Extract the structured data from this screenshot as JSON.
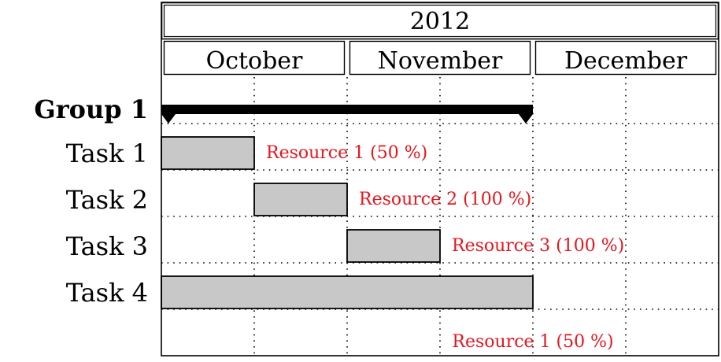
{
  "chart_data": {
    "type": "gantt",
    "title": "2012",
    "months": [
      "October",
      "November",
      "December"
    ],
    "grid": true,
    "group": {
      "label": "Group 1",
      "start": 0,
      "end": 4
    },
    "tasks": [
      {
        "label": "Task 1",
        "start": 0,
        "end": 1,
        "resource": "Resource 1 (50 %)"
      },
      {
        "label": "Task 2",
        "start": 1,
        "end": 2,
        "resource": "Resource 2 (100 %)"
      },
      {
        "label": "Task 3",
        "start": 2,
        "end": 3,
        "resource": "Resource 3 (100 %)"
      },
      {
        "label": "Task 4",
        "start": 0,
        "end": 4,
        "resource": "Resource 1 (50 %)"
      }
    ],
    "units_per_month": 2,
    "colors": {
      "bar_fill": "#c8c8c8",
      "group_bar": "#000000",
      "resource_text": "#e8141e"
    }
  }
}
